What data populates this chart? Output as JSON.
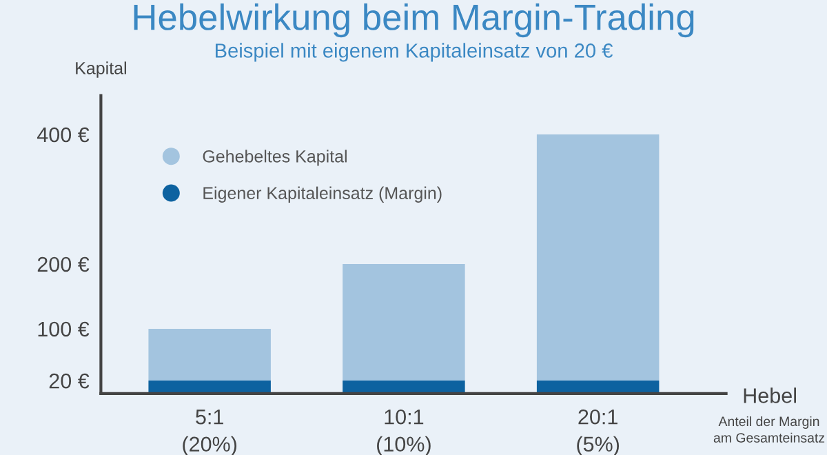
{
  "chart_data": {
    "type": "bar",
    "title": "Hebelwirkung beim Margin-Trading",
    "subtitle": "Beispiel mit eigenem Kapitaleinsatz von 20 €",
    "xlabel": "Hebel",
    "ylabel": "Kapital",
    "categories": [
      "5:1\n(20%)",
      "10:1\n(10%)",
      "20:1\n(5%)"
    ],
    "stacked": true,
    "series": [
      {
        "name": "Eigener Kapitaleinsatz (Margin)",
        "color": "#0d62a0",
        "values": [
          20,
          20,
          20
        ]
      },
      {
        "name": "Gehebeltes Kapital",
        "color": "#a3c4df",
        "values": [
          80,
          180,
          380
        ]
      }
    ],
    "ylim": [
      0,
      460
    ],
    "yticks": [
      {
        "value": 20,
        "label": "20 €"
      },
      {
        "value": 100,
        "label": "100 €"
      },
      {
        "value": 200,
        "label": "200 €"
      },
      {
        "value": 400,
        "label": "400 €"
      }
    ],
    "annotations": [
      "Anteil der Margin am Gesamteinsatz"
    ],
    "grid": false,
    "legend": "top left"
  }
}
